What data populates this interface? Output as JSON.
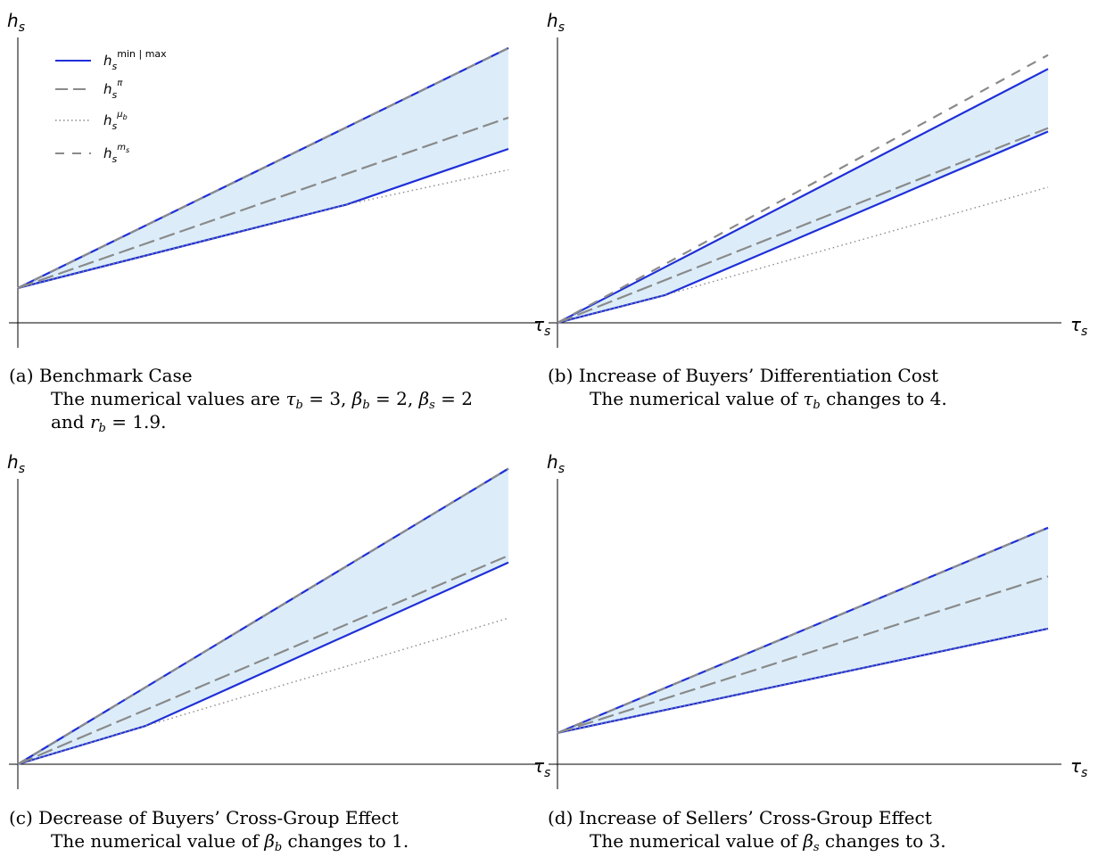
{
  "chart_data": [
    {
      "type": "line",
      "panel": "a",
      "xlabel": "τ",
      "xlabel_sub": "s",
      "ylabel": "h",
      "ylabel_sub": "s",
      "series": [
        {
          "name": "max",
          "style": "solid",
          "x": [
            0,
            1
          ],
          "y": [
            0.1,
            0.79
          ]
        },
        {
          "name": "min",
          "style": "solid",
          "x": [
            0,
            0.67,
            1
          ],
          "y": [
            0.1,
            0.34,
            0.5
          ]
        },
        {
          "name": "pi",
          "style": "long-dash",
          "x": [
            0,
            1
          ],
          "y": [
            0.1,
            0.59
          ]
        },
        {
          "name": "mu_b",
          "style": "dotted",
          "x": [
            0,
            0.67,
            1
          ],
          "y": [
            0.1,
            0.34,
            0.44
          ]
        },
        {
          "name": "m_s",
          "style": "dash",
          "x": [
            0,
            1
          ],
          "y": [
            0.1,
            0.79
          ]
        }
      ],
      "band": {
        "upper": "max",
        "lower": "min"
      }
    },
    {
      "type": "line",
      "panel": "b",
      "xlabel": "τ",
      "xlabel_sub": "s",
      "ylabel": "h",
      "ylabel_sub": "s",
      "series": [
        {
          "name": "max",
          "style": "solid",
          "x": [
            0,
            1
          ],
          "y": [
            0,
            0.73
          ]
        },
        {
          "name": "min",
          "style": "solid",
          "x": [
            0,
            0.22,
            1
          ],
          "y": [
            0,
            0.08,
            0.55
          ]
        },
        {
          "name": "pi",
          "style": "long-dash",
          "x": [
            0,
            1
          ],
          "y": [
            0,
            0.56
          ]
        },
        {
          "name": "mu_b",
          "style": "dotted",
          "x": [
            0,
            0.22,
            1
          ],
          "y": [
            0,
            0.08,
            0.39
          ]
        },
        {
          "name": "m_s",
          "style": "dash",
          "x": [
            0,
            1
          ],
          "y": [
            0,
            0.77
          ]
        }
      ],
      "band": {
        "upper": "max",
        "lower": "min"
      }
    },
    {
      "type": "line",
      "panel": "c",
      "xlabel": "τ",
      "xlabel_sub": "s",
      "ylabel": "h",
      "ylabel_sub": "s",
      "series": [
        {
          "name": "max",
          "style": "solid",
          "x": [
            0,
            1
          ],
          "y": [
            0,
            0.85
          ]
        },
        {
          "name": "min",
          "style": "solid",
          "x": [
            0,
            0.26,
            1
          ],
          "y": [
            0,
            0.11,
            0.58
          ]
        },
        {
          "name": "pi",
          "style": "long-dash",
          "x": [
            0,
            1
          ],
          "y": [
            0,
            0.6
          ]
        },
        {
          "name": "mu_b",
          "style": "dotted",
          "x": [
            0,
            0.26,
            1
          ],
          "y": [
            0,
            0.11,
            0.42
          ]
        },
        {
          "name": "m_s",
          "style": "dash",
          "x": [
            0,
            1
          ],
          "y": [
            0,
            0.85
          ]
        }
      ],
      "band": {
        "upper": "max",
        "lower": "min"
      }
    },
    {
      "type": "line",
      "panel": "d",
      "xlabel": "τ",
      "xlabel_sub": "s",
      "ylabel": "h",
      "ylabel_sub": "s",
      "series": [
        {
          "name": "max",
          "style": "solid",
          "x": [
            0,
            1
          ],
          "y": [
            0.09,
            0.68
          ]
        },
        {
          "name": "min",
          "style": "solid",
          "x": [
            0,
            1
          ],
          "y": [
            0.09,
            0.39
          ]
        },
        {
          "name": "pi",
          "style": "long-dash",
          "x": [
            0,
            1
          ],
          "y": [
            0.09,
            0.54
          ]
        },
        {
          "name": "mu_b",
          "style": "dotted",
          "x": [
            0,
            1
          ],
          "y": [
            0.09,
            0.39
          ]
        },
        {
          "name": "m_s",
          "style": "dash",
          "x": [
            0,
            1
          ],
          "y": [
            0.09,
            0.68
          ]
        }
      ],
      "band": {
        "upper": "max",
        "lower": "min"
      }
    }
  ],
  "legend": {
    "placement": "top-left of panel (a)",
    "entries": [
      {
        "series": "max",
        "base": "h",
        "sub": "s",
        "sup": "min | max",
        "style": "solid"
      },
      {
        "series": "pi",
        "base": "h",
        "sub": "s",
        "sup": "π",
        "style": "long-dash"
      },
      {
        "series": "mu_b",
        "base": "h",
        "sub": "s",
        "sup": "μ",
        "sup_sub": "b",
        "style": "dotted"
      },
      {
        "series": "m_s",
        "base": "h",
        "sub": "s",
        "sup": "m",
        "sup_sub": "s",
        "style": "dash"
      }
    ]
  },
  "colors": {
    "solid_line": "#1f2fd8",
    "dashed_line": "#8a8a8a",
    "band_fill": "#dcedf9",
    "axis": "#000000"
  },
  "captions": {
    "a": {
      "label": "(a)",
      "title": "Benchmark Case",
      "line2_prefix": "The numerical values are ",
      "line2_tb": "τ",
      "line2_tb_sub": "b",
      "line2_tb_val": " = 3, ",
      "line2_bb": "β",
      "line2_bb_sub": "b",
      "line2_bb_val": " = 2, ",
      "line2_bs": "β",
      "line2_bs_sub": "s",
      "line2_bs_val": " = 2",
      "line3_prefix": "and ",
      "line3_rb": "r",
      "line3_rb_sub": "b",
      "line3_rb_val": " = 1.9."
    },
    "b": {
      "label": "(b)",
      "title": "Increase of Buyers’ Differentiation Cost",
      "line2_prefix": "The numerical value of ",
      "line2_sym": "τ",
      "line2_sub": "b",
      "line2_suffix": " changes to 4."
    },
    "c": {
      "label": "(c)",
      "title": "Decrease of Buyers’ Cross-Group Effect",
      "line2_prefix": "The numerical value of ",
      "line2_sym": "β",
      "line2_sub": "b",
      "line2_suffix": " changes to 1."
    },
    "d": {
      "label": "(d)",
      "title": "Increase of Sellers’ Cross-Group Effect",
      "line2_prefix": "The numerical value of ",
      "line2_sym": "β",
      "line2_sub": "s",
      "line2_suffix": " changes to 3."
    }
  }
}
